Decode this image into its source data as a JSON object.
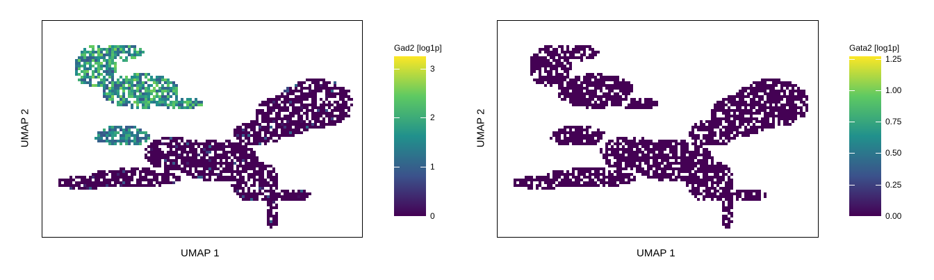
{
  "chart_data": [
    {
      "type": "scatter",
      "xlabel": "UMAP 1",
      "ylabel": "UMAP 2",
      "legend_title": "Gad2 [log1p]",
      "color_range": [
        0,
        3.25
      ],
      "colorbar_ticks": [
        "0",
        "1",
        "2",
        "3"
      ],
      "colorbar_tick_values": [
        0,
        1,
        2,
        3
      ],
      "colormap": [
        "#440154",
        "#3b528b",
        "#21918c",
        "#5ec962",
        "#fde725"
      ],
      "grid": false,
      "legend_position": "right"
    },
    {
      "type": "scatter",
      "xlabel": "UMAP 1",
      "ylabel": "UMAP 2",
      "legend_title": "Gata2 [log1p]",
      "color_range": [
        0,
        1.27
      ],
      "colorbar_ticks": [
        "0.00",
        "0.25",
        "0.50",
        "0.75",
        "1.00",
        "1.25"
      ],
      "colorbar_tick_values": [
        0,
        0.25,
        0.5,
        0.75,
        1.0,
        1.25
      ],
      "colormap": [
        "#440154",
        "#3b528b",
        "#21918c",
        "#5ec962",
        "#fde725"
      ],
      "grid": false,
      "legend_position": "right"
    }
  ]
}
